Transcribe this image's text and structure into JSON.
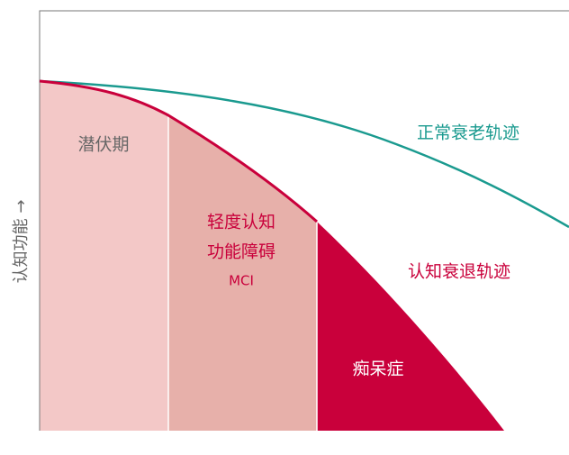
{
  "y_axis_label": "认知功能 →",
  "stages": [
    {
      "label": "潜伏期"
    },
    {
      "label_lines": [
        "轻度认知",
        "功能障碍"
      ],
      "abbr": "MCI"
    },
    {
      "label": "痴呆症"
    }
  ],
  "curves": [
    {
      "label": "正常衰老轨迹"
    },
    {
      "label": "认知衰退轨迹"
    }
  ]
}
